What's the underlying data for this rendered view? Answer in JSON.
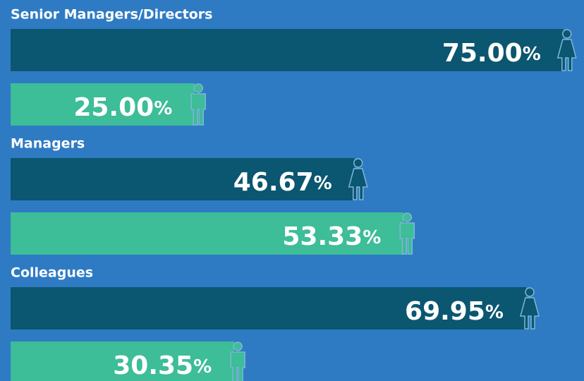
{
  "chart_data": {
    "type": "bar",
    "categories": [
      "Senior Managers/Directors",
      "Managers",
      "Colleagues"
    ],
    "series": [
      {
        "color": "#0b5670",
        "values": [
          75.0,
          46.67,
          69.95
        ],
        "value_labels": [
          "75.00%",
          "46.67%",
          "69.95%"
        ]
      },
      {
        "color": "#3dbd98",
        "values": [
          25.0,
          53.33,
          30.35
        ],
        "value_labels": [
          "25.00%",
          "53.33%",
          "30.35%"
        ]
      }
    ]
  }
}
